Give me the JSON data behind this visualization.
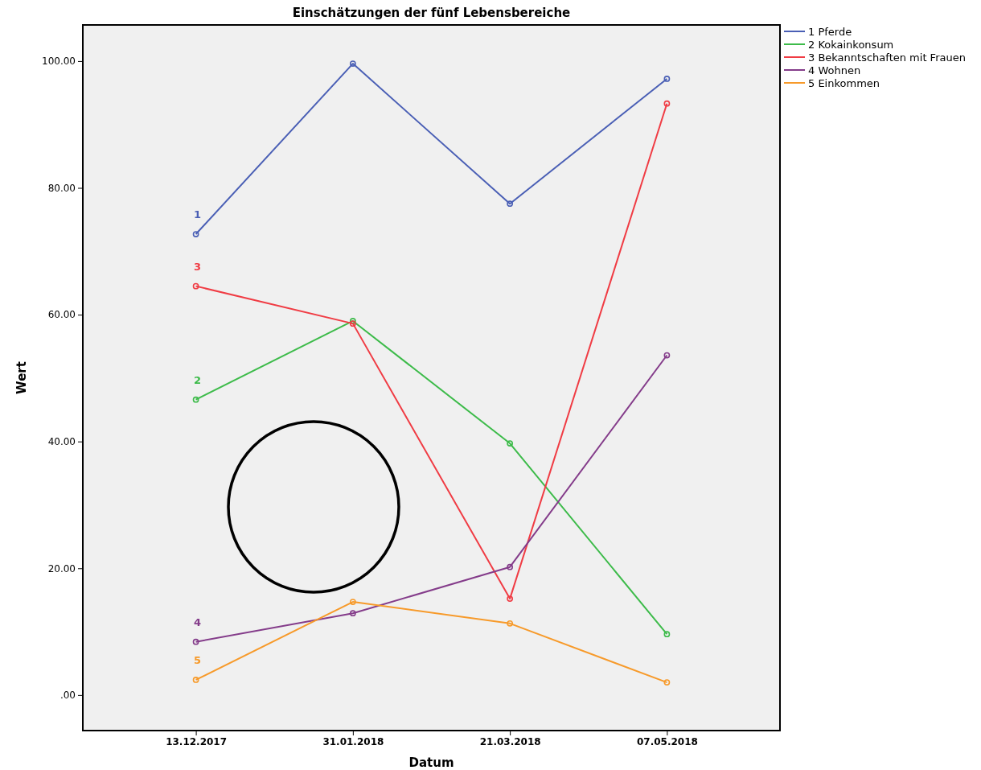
{
  "chart_data": {
    "type": "line",
    "title": "Einschätzungen der fünf Lebensbereiche",
    "xlabel": "Datum",
    "ylabel": "Wert",
    "categories": [
      "13.12.2017",
      "31.01.2018",
      "21.03.2018",
      "07.05.2018"
    ],
    "series": [
      {
        "name": "1 Pferde",
        "color": "#4a5fb5",
        "values": [
          72.7,
          99.6,
          77.5,
          97.2
        ]
      },
      {
        "name": "2 Kokainkonsum",
        "color": "#3dbb4a",
        "values": [
          46.6,
          59.0,
          39.7,
          9.6
        ]
      },
      {
        "name": "3 Bekanntschaften mit Frauen",
        "color": "#f03c44",
        "values": [
          64.5,
          58.6,
          15.2,
          93.3
        ]
      },
      {
        "name": "4 Wohnen",
        "color": "#843c8a",
        "values": [
          8.4,
          12.9,
          20.2,
          53.6
        ]
      },
      {
        "name": "5 Einkommen",
        "color": "#f79a2a",
        "values": [
          2.4,
          14.7,
          11.3,
          2.0
        ]
      }
    ],
    "ylim": [
      -5.6,
      105.7
    ],
    "yticks": [
      {
        "value": 0,
        "label": ".00"
      },
      {
        "value": 20,
        "label": "20.00"
      },
      {
        "value": 40,
        "label": "40.00"
      },
      {
        "value": 60,
        "label": "60.00"
      },
      {
        "value": 80,
        "label": "80.00"
      },
      {
        "value": 100,
        "label": "100.00"
      }
    ],
    "annotations": [
      {
        "text": "1",
        "x": "13.12.2017",
        "y": 72.7
      },
      {
        "text": "2",
        "x": "13.12.2017",
        "y": 46.6
      },
      {
        "text": "3",
        "x": "13.12.2017",
        "y": 64.5
      },
      {
        "text": "4",
        "x": "13.12.2017",
        "y": 8.4
      },
      {
        "text": "5",
        "x": "13.12.2017",
        "y": 2.4
      }
    ],
    "grid": false,
    "legend": "top right",
    "marker": "circle",
    "line_style": "solid"
  }
}
